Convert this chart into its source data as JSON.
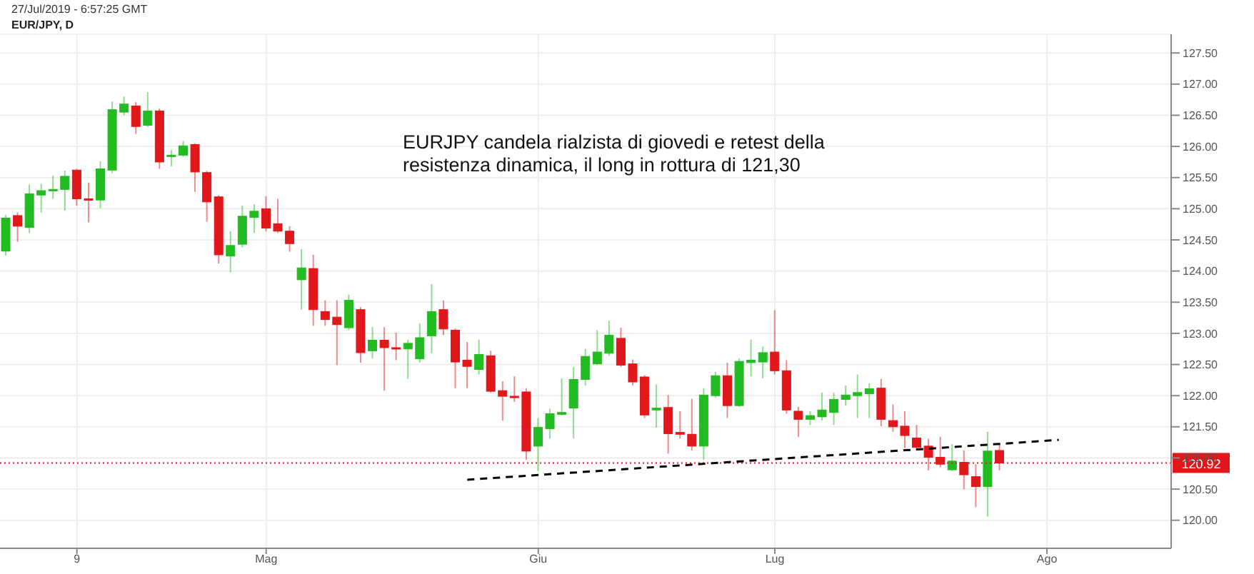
{
  "chart_data": {
    "type": "candlestick",
    "title": "EUR/JPY, D",
    "annotations": [
      "27/Jul/2019 - 6:57:25 GMT",
      {
        "text": "EURJPY candela rialzista di giovedi e retest della\nresistenza dinamica, il long in rottura di 121,30"
      }
    ],
    "categories": [
      null,
      null,
      null,
      null,
      null,
      null,
      "9",
      null,
      null,
      null,
      null,
      null,
      null,
      null,
      null,
      null,
      null,
      null,
      null,
      null,
      null,
      null,
      "Mag",
      null,
      null,
      null,
      null,
      null,
      null,
      null,
      null,
      null,
      null,
      null,
      null,
      null,
      null,
      null,
      null,
      null,
      null,
      null,
      null,
      null,
      null,
      "Giu",
      null,
      null,
      null,
      null,
      null,
      null,
      null,
      null,
      null,
      null,
      null,
      null,
      null,
      null,
      null,
      null,
      null,
      null,
      null,
      "Lug",
      null,
      null,
      null,
      null,
      null,
      null,
      null,
      null,
      null,
      null,
      null,
      null,
      null,
      null,
      null,
      null,
      null,
      null,
      null,
      null,
      null,
      null,
      "Ago",
      null,
      null,
      null,
      null,
      null,
      null,
      null,
      null,
      null,
      null
    ],
    "ohlc": [
      [
        124.32,
        124.9,
        124.25,
        124.85
      ],
      [
        124.89,
        124.94,
        124.47,
        124.72
      ],
      [
        124.7,
        125.39,
        124.61,
        125.24
      ],
      [
        125.22,
        125.4,
        124.94,
        125.29
      ],
      [
        125.3,
        125.53,
        125.16,
        125.31
      ],
      [
        125.31,
        125.61,
        124.97,
        125.52
      ],
      [
        125.62,
        125.64,
        125.05,
        125.16
      ],
      [
        125.16,
        125.42,
        124.78,
        125.15
      ],
      [
        125.14,
        125.76,
        125.01,
        125.64
      ],
      [
        125.62,
        126.72,
        125.57,
        126.59
      ],
      [
        126.55,
        126.8,
        126.5,
        126.68
      ],
      [
        126.65,
        126.71,
        126.2,
        126.32
      ],
      [
        126.34,
        126.87,
        126.31,
        126.57
      ],
      [
        126.57,
        126.61,
        125.64,
        125.75
      ],
      [
        125.84,
        125.94,
        125.68,
        125.86
      ],
      [
        125.86,
        126.09,
        125.83,
        126.01
      ],
      [
        126.03,
        126.05,
        125.27,
        125.59
      ],
      [
        125.58,
        125.61,
        124.79,
        125.11
      ],
      [
        125.19,
        125.22,
        124.12,
        124.26
      ],
      [
        124.24,
        124.64,
        123.98,
        124.41
      ],
      [
        124.43,
        125.05,
        124.38,
        124.88
      ],
      [
        124.86,
        125.07,
        124.61,
        124.96
      ],
      [
        125.0,
        125.2,
        124.64,
        124.69
      ],
      [
        124.76,
        125.16,
        124.61,
        124.64
      ],
      [
        124.64,
        124.72,
        124.31,
        124.44
      ],
      [
        123.86,
        124.35,
        123.38,
        124.05
      ],
      [
        124.04,
        124.26,
        123.12,
        123.38
      ],
      [
        123.35,
        123.53,
        123.12,
        123.22
      ],
      [
        123.26,
        123.53,
        122.49,
        123.14
      ],
      [
        123.09,
        123.62,
        123.05,
        123.53
      ],
      [
        123.38,
        123.42,
        122.53,
        122.69
      ],
      [
        122.72,
        123.1,
        122.6,
        122.89
      ],
      [
        122.89,
        123.1,
        122.08,
        122.77
      ],
      [
        122.77,
        123.01,
        122.57,
        122.75
      ],
      [
        122.75,
        122.9,
        122.27,
        122.84
      ],
      [
        122.59,
        123.16,
        122.53,
        122.93
      ],
      [
        122.96,
        123.79,
        122.68,
        123.35
      ],
      [
        123.38,
        123.53,
        122.97,
        123.07
      ],
      [
        123.05,
        123.08,
        122.12,
        122.54
      ],
      [
        122.57,
        122.86,
        122.12,
        122.47
      ],
      [
        122.42,
        122.9,
        122.34,
        122.66
      ],
      [
        122.64,
        122.72,
        122.05,
        122.07
      ],
      [
        122.08,
        122.23,
        121.6,
        121.99
      ],
      [
        121.99,
        122.31,
        121.9,
        121.98
      ],
      [
        122.06,
        122.12,
        120.97,
        121.11
      ],
      [
        121.19,
        121.64,
        120.79,
        121.49
      ],
      [
        121.47,
        121.79,
        121.31,
        121.71
      ],
      [
        121.7,
        122.28,
        121.68,
        121.73
      ],
      [
        121.8,
        122.46,
        121.31,
        122.26
      ],
      [
        122.26,
        122.75,
        122.16,
        122.63
      ],
      [
        122.51,
        123.05,
        122.49,
        122.7
      ],
      [
        122.68,
        123.2,
        122.64,
        122.97
      ],
      [
        122.92,
        123.09,
        122.46,
        122.49
      ],
      [
        122.51,
        122.58,
        122.16,
        122.22
      ],
      [
        122.3,
        122.33,
        121.64,
        121.69
      ],
      [
        121.77,
        122.18,
        121.49,
        121.8
      ],
      [
        121.81,
        122.01,
        121.07,
        121.39
      ],
      [
        121.41,
        121.75,
        121.31,
        121.38
      ],
      [
        121.38,
        121.95,
        121.12,
        121.19
      ],
      [
        121.19,
        122.12,
        120.97,
        122.01
      ],
      [
        122.0,
        122.38,
        121.97,
        122.32
      ],
      [
        122.32,
        122.53,
        121.64,
        121.84
      ],
      [
        121.84,
        122.6,
        121.82,
        122.55
      ],
      [
        122.53,
        122.9,
        122.31,
        122.57
      ],
      [
        122.54,
        122.79,
        122.28,
        122.69
      ],
      [
        122.7,
        123.37,
        122.34,
        122.4
      ],
      [
        122.4,
        122.57,
        121.71,
        121.77
      ],
      [
        121.75,
        121.82,
        121.34,
        121.62
      ],
      [
        121.62,
        121.75,
        121.53,
        121.68
      ],
      [
        121.66,
        122.05,
        121.6,
        121.77
      ],
      [
        121.73,
        122.05,
        121.53,
        121.94
      ],
      [
        121.94,
        122.16,
        121.84,
        122.01
      ],
      [
        122.0,
        122.34,
        121.64,
        122.05
      ],
      [
        122.03,
        122.2,
        121.64,
        122.11
      ],
      [
        122.12,
        122.27,
        121.51,
        121.62
      ],
      [
        121.6,
        121.86,
        121.42,
        121.5
      ],
      [
        121.51,
        121.75,
        121.16,
        121.36
      ],
      [
        121.32,
        121.53,
        121.12,
        121.17
      ],
      [
        121.19,
        121.31,
        120.8,
        121.01
      ],
      [
        121.01,
        121.34,
        120.85,
        120.9
      ],
      [
        120.81,
        121.22,
        120.79,
        120.95
      ],
      [
        120.93,
        121.12,
        120.5,
        120.73
      ],
      [
        120.7,
        120.9,
        120.21,
        120.54
      ],
      [
        120.54,
        121.42,
        120.06,
        121.11
      ],
      [
        121.12,
        121.22,
        120.8,
        120.92
      ],
      null,
      null,
      null,
      null,
      null,
      null,
      null,
      null,
      null,
      null,
      null,
      null,
      null,
      null
    ],
    "series": [
      {
        "type": "line",
        "values": [
          null,
          null,
          null,
          null,
          null,
          null,
          null,
          null,
          null,
          null,
          null,
          null,
          null,
          null,
          null,
          null,
          null,
          null,
          null,
          null,
          null,
          null,
          null,
          null,
          null,
          null,
          null,
          null,
          null,
          null,
          null,
          null,
          null,
          null,
          null,
          null,
          null,
          null,
          null,
          120.65,
          null,
          null,
          null,
          null,
          null,
          null,
          null,
          null,
          null,
          null,
          null,
          null,
          null,
          null,
          null,
          null,
          null,
          null,
          null,
          null,
          null,
          null,
          null,
          null,
          null,
          null,
          null,
          null,
          null,
          null,
          null,
          null,
          null,
          null,
          null,
          null,
          null,
          null,
          null,
          null,
          null,
          null,
          null,
          null,
          null,
          null,
          null,
          null,
          null,
          121.29,
          null,
          null,
          null,
          null,
          null,
          null,
          null,
          null,
          null
        ],
        "color": "#000000",
        "line_style": "dashed"
      }
    ],
    "ref_lines": [
      {
        "axis": "y",
        "value": 120.92,
        "label": "120.92",
        "color": "#e0171b",
        "line_style": "dotted"
      }
    ],
    "ylim": [
      119.55,
      127.8
    ],
    "yticks": [
      {
        "value": 120,
        "label": "120.00"
      },
      {
        "value": 120.5,
        "label": "120.50"
      },
      {
        "value": 121,
        "label": "121.00"
      },
      {
        "value": 121.5,
        "label": "121.50"
      },
      {
        "value": 122,
        "label": "122.00"
      },
      {
        "value": 122.5,
        "label": "122.50"
      },
      {
        "value": 123,
        "label": "123.00"
      },
      {
        "value": 123.5,
        "label": "123.50"
      },
      {
        "value": 124,
        "label": "124.00"
      },
      {
        "value": 124.5,
        "label": "124.50"
      },
      {
        "value": 125,
        "label": "125.00"
      },
      {
        "value": 125.5,
        "label": "125.50"
      },
      {
        "value": 126,
        "label": "126.00"
      },
      {
        "value": 126.5,
        "label": "126.50"
      },
      {
        "value": 127,
        "label": "127.00"
      },
      {
        "value": 127.5,
        "label": "127.50"
      }
    ],
    "grid": true
  }
}
